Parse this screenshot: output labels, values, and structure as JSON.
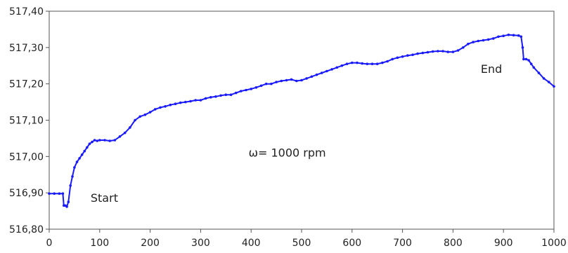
{
  "chart_data": {
    "type": "line",
    "title": "",
    "xlabel": "",
    "ylabel": "",
    "xlim": [
      0,
      1000
    ],
    "ylim": [
      516.8,
      517.4
    ],
    "grid": false,
    "legend": "none",
    "x_ticks": [
      0,
      100,
      200,
      300,
      400,
      500,
      600,
      700,
      800,
      900,
      1000
    ],
    "x_tick_labels": [
      "0",
      "100",
      "200",
      "300",
      "400",
      "500",
      "600",
      "700",
      "800",
      "900",
      "1000"
    ],
    "y_ticks": [
      516.8,
      516.9,
      517.0,
      517.1,
      517.2,
      517.3,
      517.4
    ],
    "y_tick_labels": [
      "516,80",
      "516,90",
      "517,00",
      "517,10",
      "517,20",
      "517,30",
      "517,40"
    ],
    "series": [
      {
        "color": "#1a1aff",
        "x": [
          0,
          10,
          20,
          27,
          29,
          32,
          35,
          38,
          42,
          46,
          50,
          55,
          60,
          65,
          70,
          75,
          80,
          85,
          90,
          95,
          100,
          110,
          120,
          130,
          140,
          150,
          160,
          170,
          180,
          190,
          200,
          210,
          220,
          230,
          240,
          250,
          260,
          270,
          280,
          290,
          300,
          310,
          320,
          330,
          340,
          350,
          360,
          370,
          380,
          390,
          400,
          410,
          420,
          430,
          440,
          450,
          460,
          470,
          480,
          490,
          500,
          510,
          520,
          530,
          540,
          550,
          560,
          570,
          580,
          590,
          600,
          610,
          620,
          630,
          640,
          650,
          660,
          670,
          680,
          690,
          700,
          710,
          720,
          730,
          740,
          750,
          760,
          770,
          780,
          790,
          800,
          810,
          820,
          830,
          840,
          850,
          860,
          870,
          880,
          890,
          900,
          910,
          920,
          930,
          935,
          938,
          940,
          945,
          950,
          955,
          960,
          970,
          980,
          990,
          1000
        ],
        "values": [
          516.898,
          516.898,
          516.898,
          516.898,
          516.865,
          516.865,
          516.862,
          516.875,
          516.92,
          516.945,
          516.97,
          516.985,
          516.995,
          517.005,
          517.015,
          517.025,
          517.035,
          517.04,
          517.045,
          517.043,
          517.045,
          517.045,
          517.043,
          517.045,
          517.055,
          517.065,
          517.08,
          517.1,
          517.11,
          517.115,
          517.122,
          517.13,
          517.135,
          517.138,
          517.142,
          517.145,
          517.148,
          517.15,
          517.152,
          517.155,
          517.155,
          517.16,
          517.163,
          517.165,
          517.168,
          517.17,
          517.17,
          517.175,
          517.18,
          517.183,
          517.186,
          517.19,
          517.195,
          517.2,
          517.2,
          517.205,
          517.208,
          517.21,
          517.212,
          517.208,
          517.21,
          517.215,
          517.22,
          517.225,
          517.23,
          517.235,
          517.24,
          517.245,
          517.25,
          517.255,
          517.258,
          517.258,
          517.256,
          517.255,
          517.255,
          517.255,
          517.258,
          517.262,
          517.268,
          517.272,
          517.275,
          517.278,
          517.28,
          517.283,
          517.285,
          517.287,
          517.289,
          517.29,
          517.29,
          517.288,
          517.288,
          517.292,
          517.3,
          517.31,
          517.315,
          517.318,
          517.32,
          517.322,
          517.325,
          517.33,
          517.332,
          517.335,
          517.334,
          517.333,
          517.33,
          517.3,
          517.268,
          517.268,
          517.265,
          517.255,
          517.245,
          517.23,
          517.215,
          517.205,
          517.193
        ]
      }
    ],
    "annotations": [
      {
        "text": "Start",
        "x": 82,
        "y": 516.875
      },
      {
        "text": "End",
        "x": 855,
        "y": 517.23
      },
      {
        "text": "ω= 1000 rpm",
        "x": 395,
        "y": 517.0
      }
    ]
  }
}
